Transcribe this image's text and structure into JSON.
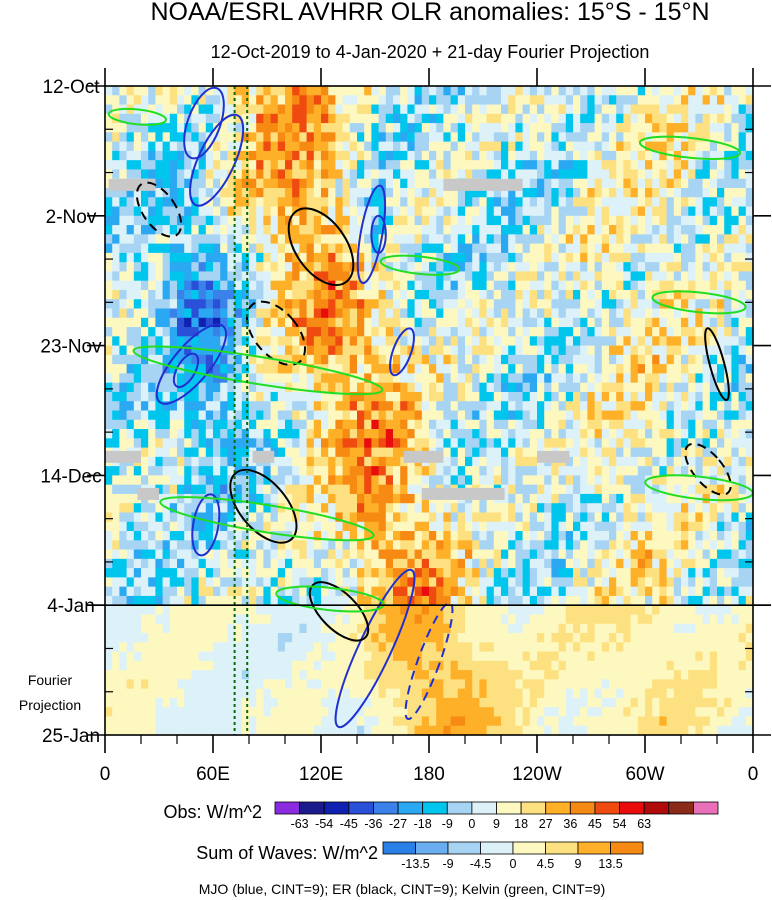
{
  "chart_data": {
    "type": "heatmap",
    "title": "NOAA/ESRL AVHRR OLR anomalies: 15°S - 15°N",
    "subtitle": "12-Oct-2019 to 4-Jan-2020 + 21-day Fourier Projection",
    "x_ticks": [
      "0",
      "60E",
      "120E",
      "180",
      "120W",
      "60W",
      "0"
    ],
    "x_tick_values": [
      0,
      60,
      120,
      180,
      240,
      300,
      360
    ],
    "x_range": [
      0,
      360
    ],
    "y_ticks": [
      "12-Oct",
      "2-Nov",
      "23-Nov",
      "14-Dec",
      "4-Jan",
      "25-Jan"
    ],
    "y_tick_days": [
      0,
      21,
      42,
      63,
      84,
      105
    ],
    "y_range_days": [
      0,
      105
    ],
    "projection_start_day": 84,
    "projection_label": [
      "Fourier",
      "Projection"
    ],
    "obs_colorbar": {
      "label": "Obs: W/m^2",
      "ticks": [
        "-63",
        "-54",
        "-45",
        "-36",
        "-27",
        "-18",
        "-9",
        "0",
        "9",
        "18",
        "27",
        "36",
        "45",
        "54",
        "63"
      ],
      "colors": [
        "#8a2be2",
        "#1a1a8c",
        "#1020b0",
        "#2a50d8",
        "#3a82ea",
        "#2aa8f2",
        "#00c6ee",
        "#a8d4f4",
        "#dcf2f8",
        "#fdf8c0",
        "#fde080",
        "#fdb028",
        "#f78a12",
        "#ef4a10",
        "#e80c0c",
        "#b00a0a",
        "#8a2a18",
        "#e870b8"
      ]
    },
    "waves_colorbar": {
      "label": "Sum of Waves: W/m^2",
      "ticks": [
        "-13.5",
        "-9",
        "-4.5",
        "0",
        "4.5",
        "9",
        "13.5"
      ],
      "colors": [
        "#2a80e6",
        "#6aaef0",
        "#a8d4f4",
        "#dcf2f8",
        "#fdf8c0",
        "#fde080",
        "#fdb028",
        "#f78a12"
      ]
    },
    "contour_legend": "MJO (blue, CINT=9); ER (black, CINT=9); Kelvin (green, CINT=9)",
    "reference_lines_lon": [
      72,
      79
    ],
    "blank_segments": [
      {
        "day": 16,
        "lon_start": 2,
        "lon_end": 28
      },
      {
        "day": 16,
        "lon_start": 188,
        "lon_end": 232
      },
      {
        "day": 60,
        "lon_start": 0,
        "lon_end": 20
      },
      {
        "day": 60,
        "lon_start": 82,
        "lon_end": 94
      },
      {
        "day": 60,
        "lon_start": 166,
        "lon_end": 188
      },
      {
        "day": 60,
        "lon_start": 240,
        "lon_end": 258
      },
      {
        "day": 66,
        "lon_start": 18,
        "lon_end": 30
      },
      {
        "day": 66,
        "lon_start": 176,
        "lon_end": 222
      }
    ],
    "mjo_contours": [
      {
        "lon": 55,
        "day": 6,
        "rx": 9,
        "ry": 6,
        "rot": 20,
        "dashed": false
      },
      {
        "lon": 62,
        "day": 12,
        "rx": 10,
        "ry": 8,
        "rot": 25,
        "dashed": false
      },
      {
        "lon": 148,
        "day": 24,
        "rx": 6,
        "ry": 8,
        "rot": 10,
        "dashed": false
      },
      {
        "lon": 152,
        "day": 24,
        "rx": 4,
        "ry": 3,
        "rot": 0,
        "dashed": false
      },
      {
        "lon": 48,
        "day": 45,
        "rx": 10,
        "ry": 8,
        "rot": 40,
        "dashed": false
      },
      {
        "lon": 45,
        "day": 46,
        "rx": 5,
        "ry": 3,
        "rot": 30,
        "dashed": false
      },
      {
        "lon": 165,
        "day": 43,
        "rx": 5,
        "ry": 4,
        "rot": 20,
        "dashed": false
      },
      {
        "lon": 56,
        "day": 71,
        "rx": 7,
        "ry": 5,
        "rot": 10,
        "dashed": false
      },
      {
        "lon": 150,
        "day": 91,
        "rx": 9,
        "ry": 14,
        "rot": 25,
        "dashed": false
      },
      {
        "lon": 180,
        "day": 93,
        "rx": 6,
        "ry": 10,
        "rot": 20,
        "dashed": true
      }
    ],
    "er_contours": [
      {
        "lon": 120,
        "day": 26,
        "rx": 14,
        "ry": 7,
        "rot": -35,
        "dashed": false
      },
      {
        "lon": 95,
        "day": 40,
        "rx": 12,
        "ry": 6,
        "rot": -40,
        "dashed": true
      },
      {
        "lon": 30,
        "day": 20,
        "rx": 9,
        "ry": 5,
        "rot": -35,
        "dashed": true
      },
      {
        "lon": 88,
        "day": 68,
        "rx": 13,
        "ry": 7,
        "rot": -40,
        "dashed": false
      },
      {
        "lon": 130,
        "day": 85,
        "rx": 10,
        "ry": 6,
        "rot": -45,
        "dashed": false
      },
      {
        "lon": 335,
        "day": 62,
        "rx": 8,
        "ry": 5,
        "rot": -40,
        "dashed": true
      },
      {
        "lon": 340,
        "day": 45,
        "rx": 4,
        "ry": 6,
        "rot": -15,
        "dashed": false
      }
    ],
    "kelvin_contours": [
      {
        "lon": 18,
        "day": 5,
        "rx": 16,
        "ry": 1.2,
        "rot": 6,
        "dashed": false
      },
      {
        "lon": 325,
        "day": 10,
        "rx": 28,
        "ry": 1.6,
        "rot": 6,
        "dashed": false
      },
      {
        "lon": 175,
        "day": 29,
        "rx": 22,
        "ry": 1.4,
        "rot": 6,
        "dashed": false
      },
      {
        "lon": 330,
        "day": 35,
        "rx": 26,
        "ry": 1.6,
        "rot": 6,
        "dashed": false
      },
      {
        "lon": 85,
        "day": 46,
        "rx": 70,
        "ry": 2.2,
        "rot": 9,
        "dashed": false
      },
      {
        "lon": 330,
        "day": 65,
        "rx": 30,
        "ry": 1.8,
        "rot": 6,
        "dashed": false
      },
      {
        "lon": 90,
        "day": 70,
        "rx": 60,
        "ry": 2.2,
        "rot": 9,
        "dashed": false
      },
      {
        "lon": 125,
        "day": 83,
        "rx": 30,
        "ry": 1.8,
        "rot": 6,
        "dashed": false
      }
    ]
  }
}
